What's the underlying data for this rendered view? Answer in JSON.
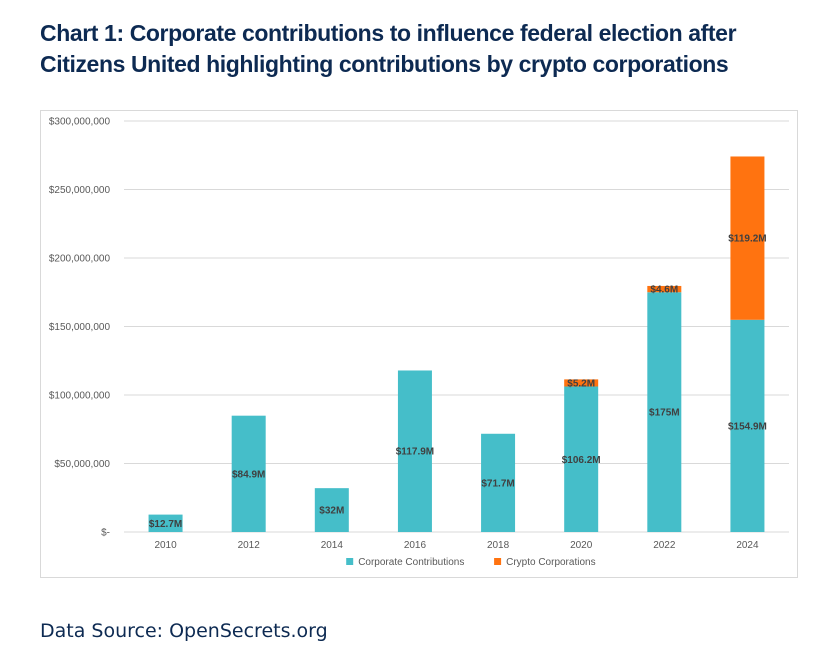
{
  "title": "Chart 1: Corporate contributions to influence federal election after Citizens United highlighting contributions by crypto corporations",
  "source": "Data Source: OpenSecrets.org",
  "chart_data": {
    "type": "bar",
    "stacked": true,
    "categories": [
      "2010",
      "2012",
      "2014",
      "2016",
      "2018",
      "2020",
      "2022",
      "2024"
    ],
    "series": [
      {
        "name": "Corporate Contributions",
        "color": "#45bec9",
        "values": [
          12700000,
          84900000,
          32000000,
          117900000,
          71700000,
          106200000,
          175000000,
          154900000
        ],
        "labels": [
          "$12.7M",
          "$84.9M",
          "$32M",
          "$117.9M",
          "$71.7M",
          "$106.2M",
          "$175M",
          "$154.9M"
        ]
      },
      {
        "name": "Crypto Corporations",
        "color": "#ff7310",
        "values": [
          0,
          0,
          0,
          0,
          0,
          5200000,
          4600000,
          119200000
        ],
        "labels": [
          "",
          "",
          "",
          "",
          "",
          "$5.2M",
          "$4.6M",
          "$119.2M"
        ]
      }
    ],
    "y_ticks": [
      0,
      50000000,
      100000000,
      150000000,
      200000000,
      250000000,
      300000000
    ],
    "y_tick_labels": [
      "$-",
      "$50,000,000",
      "$100,000,000",
      "$150,000,000",
      "$200,000,000",
      "$250,000,000",
      "$300,000,000"
    ],
    "ylim": [
      0,
      300000000
    ],
    "grid": true,
    "legend": "bottom"
  }
}
